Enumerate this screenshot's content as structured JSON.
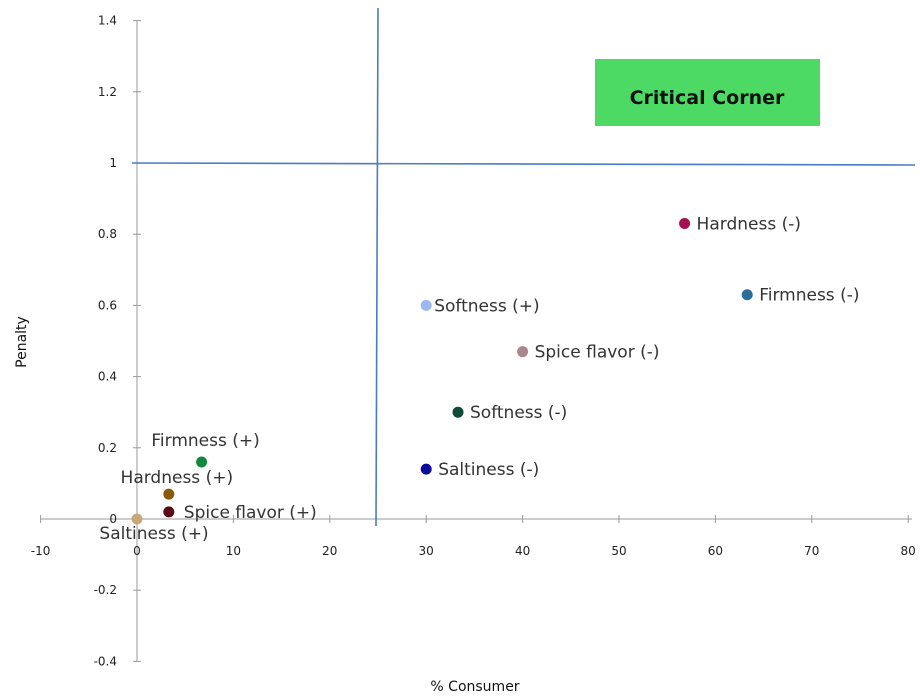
{
  "chart_data": {
    "type": "scatter",
    "title": "",
    "xlabel": "% Consumer",
    "ylabel": "Penalty",
    "xlim": [
      -10,
      80
    ],
    "ylim": [
      -0.4,
      1.4
    ],
    "x_ticks": [
      -10,
      0,
      10,
      20,
      30,
      40,
      50,
      60,
      70,
      80
    ],
    "y_ticks": [
      -0.4,
      -0.2,
      0,
      0.2,
      0.4,
      0.6,
      0.8,
      1,
      1.2,
      1.4
    ],
    "grid": false,
    "reference_lines": {
      "x": 25,
      "y": 1
    },
    "annotation": {
      "text": "Critical Corner",
      "color": "#4cd964"
    },
    "points": [
      {
        "label": "Hardness (-)",
        "x": 56.8,
        "y": 0.83,
        "color": "#a3114f"
      },
      {
        "label": "Firmness (-)",
        "x": 63.3,
        "y": 0.63,
        "color": "#2b6f99"
      },
      {
        "label": "Softness (+)",
        "x": 30,
        "y": 0.6,
        "color": "#9bb8ef"
      },
      {
        "label": "Spice flavor (-)",
        "x": 40,
        "y": 0.47,
        "color": "#a8878f"
      },
      {
        "label": "Softness (-)",
        "x": 33.3,
        "y": 0.3,
        "color": "#0c4a3a"
      },
      {
        "label": "Saltiness (-)",
        "x": 30,
        "y": 0.14,
        "color": "#0a0a9e"
      },
      {
        "label": "Firmness (+)",
        "x": 6.7,
        "y": 0.16,
        "color": "#0f8a3a"
      },
      {
        "label": "Hardness (+)",
        "x": 3.3,
        "y": 0.07,
        "color": "#8a5a0a"
      },
      {
        "label": "Spice flavor (+)",
        "x": 3.3,
        "y": 0.02,
        "color": "#5a0a14"
      },
      {
        "label": "Saltiness (+)",
        "x": 0,
        "y": 0,
        "color": "#c9a77a"
      }
    ]
  }
}
